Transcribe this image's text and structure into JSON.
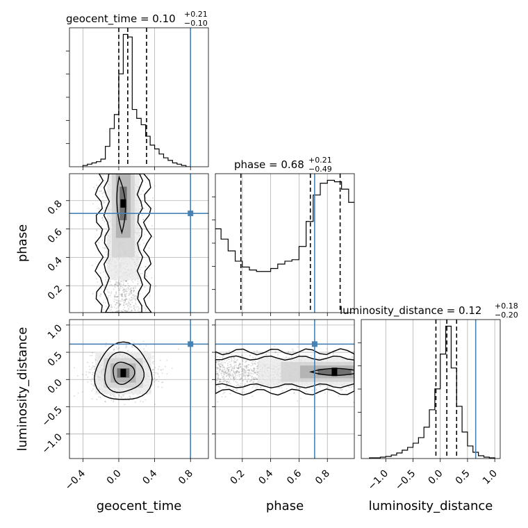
{
  "chart_data": {
    "type": "corner",
    "parameters": [
      "geocent_time",
      "phase",
      "luminosity_distance"
    ],
    "truth": {
      "geocent_time": 0.8,
      "phase": 0.71,
      "luminosity_distance": 0.65
    },
    "truth_color": "#4682b4",
    "titles": [
      {
        "param": "geocent_time",
        "label": "geocent_time = 0.10",
        "plus": "+0.21",
        "minus": "−0.10"
      },
      {
        "param": "phase",
        "label": "phase = 0.68",
        "plus": "+0.21",
        "minus": "−0.49"
      },
      {
        "param": "luminosity_distance",
        "label": "luminosity_distance = 0.12",
        "plus": "+0.18",
        "minus": "−0.20"
      }
    ],
    "axis_labels": {
      "x": [
        "geocent_time",
        "phase",
        "luminosity_distance"
      ],
      "y": [
        "phase",
        "luminosity_distance"
      ]
    },
    "ranges": {
      "geocent_time": [
        -0.55,
        1.0
      ],
      "phase": [
        0.01,
        0.99
      ],
      "luminosity_distance": [
        -1.45,
        1.1
      ]
    },
    "ticks": {
      "geocent_time": {
        "values": [
          -0.4,
          0.0,
          0.4,
          0.8
        ],
        "labels": [
          "−0.4",
          "0.0",
          "0.4",
          "0.8"
        ]
      },
      "phase": {
        "values": [
          0.2,
          0.4,
          0.6,
          0.8
        ],
        "labels": [
          "0.2",
          "0.4",
          "0.6",
          "0.8"
        ]
      },
      "luminosity_distance": {
        "values": [
          -1.0,
          -0.5,
          0.0,
          0.5,
          1.0
        ],
        "labels": [
          "−1.0",
          "−0.5",
          "0.0",
          "0.5",
          "1.0"
        ]
      }
    },
    "quantiles": {
      "geocent_time": [
        0.0,
        0.1,
        0.31
      ],
      "phase": [
        0.19,
        0.68,
        0.89
      ],
      "luminosity_distance": [
        -0.08,
        0.12,
        0.3
      ]
    },
    "hist_geocent_time": {
      "bin_edges": [
        -0.4,
        -0.35,
        -0.3,
        -0.25,
        -0.2,
        -0.15,
        -0.1,
        -0.05,
        0.0,
        0.05,
        0.1,
        0.15,
        0.2,
        0.25,
        0.3,
        0.35,
        0.4,
        0.45,
        0.5,
        0.55,
        0.6,
        0.65,
        0.7,
        0.75,
        0.8
      ],
      "counts": [
        1,
        2,
        3,
        4,
        6,
        16,
        30,
        41,
        73,
        104,
        102,
        45,
        38,
        33,
        24,
        17,
        14,
        10,
        7,
        5,
        3,
        2,
        1,
        0
      ]
    },
    "hist_phase": {
      "bin_edges": [
        0.0,
        0.05,
        0.1,
        0.15,
        0.2,
        0.25,
        0.3,
        0.35,
        0.4,
        0.45,
        0.5,
        0.55,
        0.6,
        0.65,
        0.7,
        0.75,
        0.8,
        0.85,
        0.9,
        0.95,
        1.0
      ],
      "counts": [
        57,
        50,
        42,
        35,
        31,
        29,
        28,
        28,
        30,
        33,
        35,
        36,
        45,
        62,
        80,
        88,
        90,
        89,
        84,
        75
      ]
    },
    "hist_luminosity_distance": {
      "bin_edges": [
        -1.3,
        -1.2,
        -1.1,
        -1.0,
        -0.9,
        -0.8,
        -0.7,
        -0.6,
        -0.5,
        -0.4,
        -0.3,
        -0.2,
        -0.1,
        0.0,
        0.1,
        0.2,
        0.3,
        0.4,
        0.5,
        0.6,
        0.7,
        0.8,
        0.9,
        1.0
      ],
      "counts": [
        1,
        1,
        2,
        3,
        5,
        8,
        12,
        16,
        22,
        30,
        45,
        70,
        100,
        150,
        190,
        130,
        75,
        38,
        18,
        9,
        4,
        2,
        1
      ]
    },
    "scatter_dens_phase_geocent_time": {
      "center": [
        0.05,
        0.78
      ],
      "spread": [
        0.07,
        0.1
      ],
      "band": "vertical"
    },
    "scatter_dens_luminosity_distance_geocent_time": {
      "center": [
        0.05,
        0.12
      ],
      "spread": [
        0.12,
        0.15
      ]
    },
    "scatter_dens_luminosity_distance_phase": {
      "center": [
        0.85,
        0.14
      ],
      "spread": [
        0.2,
        0.1
      ],
      "band": "horizontal"
    }
  }
}
